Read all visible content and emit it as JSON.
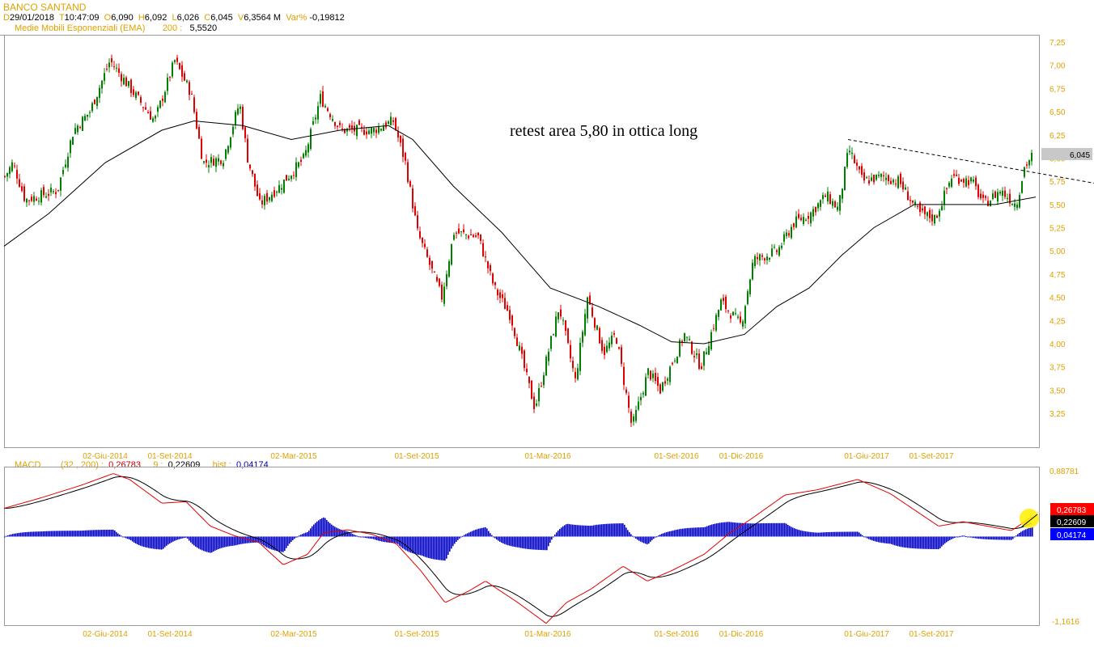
{
  "header": {
    "symbol": "BANCO SANTAND",
    "d_label": "D",
    "date": "29/01/2018",
    "t_label": "T",
    "time": "10:47:09",
    "o_label": "O",
    "open": "6,090",
    "h_label": "H",
    "high": "6,092",
    "l_label": "L",
    "low": "6,026",
    "c_label": "C",
    "close": "6,045",
    "v_label": "V",
    "volume": "6,3564 M",
    "var_label": "Var%",
    "var": "-0,19812",
    "ema_label": "Medie Mobili Esponenziali (EMA)",
    "ema_period": "200 :",
    "ema_value": "5,5520"
  },
  "macd_header": {
    "label": "MACD",
    "params": "(32 , 200) :",
    "macd_value": "0,26783",
    "signal_label": "9 :",
    "signal_value": "0,22609",
    "hist_label": "hist :",
    "hist_value": "0,04174"
  },
  "annotation": "retest area 5,80 in ottica long",
  "colors": {
    "up": "#008000",
    "down": "#e00000",
    "axis_text": "#e0a000",
    "macd": "#e00000",
    "signal": "#000000",
    "hist": "#0000cc",
    "highlight": "#ffee00"
  },
  "chart_data": [
    {
      "type": "candlestick",
      "title": "BANCO SANTAND",
      "ylim": [
        3.0,
        7.3
      ],
      "yticks": [
        "7,25",
        "7,00",
        "6,75",
        "6,50",
        "6,25",
        "6,00",
        "5,75",
        "5,50",
        "5,25",
        "5,00",
        "4,75",
        "4,50",
        "4,25",
        "4,00",
        "3,75",
        "3,50",
        "3,25"
      ],
      "xticks": [
        {
          "label": "02-Giu-2014",
          "t": 125
        },
        {
          "label": "01-Set-2014",
          "t": 205
        },
        {
          "label": "02-Mar-2015",
          "t": 358
        },
        {
          "label": "01-Set-2015",
          "t": 510
        },
        {
          "label": "01-Mar-2016",
          "t": 672
        },
        {
          "label": "01-Set-2016",
          "t": 831
        },
        {
          "label": "01-Dic-2016",
          "t": 911
        },
        {
          "label": "01-Giu-2017",
          "t": 1066
        },
        {
          "label": "01-Set-2017",
          "t": 1146
        }
      ],
      "xrange": [
        0,
        1280
      ],
      "close_path": [
        [
          0,
          5.8
        ],
        [
          10,
          5.95
        ],
        [
          25,
          5.55
        ],
        [
          65,
          5.65
        ],
        [
          85,
          6.3
        ],
        [
          105,
          6.5
        ],
        [
          130,
          7.05
        ],
        [
          155,
          6.75
        ],
        [
          185,
          6.4
        ],
        [
          210,
          7.05
        ],
        [
          230,
          6.7
        ],
        [
          245,
          5.95
        ],
        [
          270,
          6.0
        ],
        [
          290,
          6.6
        ],
        [
          300,
          6.0
        ],
        [
          315,
          5.5
        ],
        [
          340,
          5.7
        ],
        [
          370,
          6.0
        ],
        [
          390,
          6.65
        ],
        [
          415,
          6.3
        ],
        [
          455,
          6.3
        ],
        [
          480,
          6.4
        ],
        [
          495,
          5.95
        ],
        [
          510,
          5.2
        ],
        [
          540,
          4.5
        ],
        [
          555,
          5.2
        ],
        [
          585,
          5.15
        ],
        [
          605,
          4.6
        ],
        [
          625,
          4.3
        ],
        [
          655,
          3.3
        ],
        [
          685,
          4.4
        ],
        [
          705,
          3.6
        ],
        [
          720,
          4.5
        ],
        [
          740,
          3.9
        ],
        [
          755,
          4.1
        ],
        [
          775,
          3.1
        ],
        [
          795,
          3.7
        ],
        [
          810,
          3.5
        ],
        [
          840,
          4.1
        ],
        [
          860,
          3.75
        ],
        [
          885,
          4.45
        ],
        [
          910,
          4.2
        ],
        [
          925,
          4.9
        ],
        [
          955,
          5.0
        ],
        [
          975,
          5.3
        ],
        [
          995,
          5.4
        ],
        [
          1015,
          5.6
        ],
        [
          1030,
          5.45
        ],
        [
          1043,
          6.1
        ],
        [
          1060,
          5.75
        ],
        [
          1085,
          5.8
        ],
        [
          1105,
          5.75
        ],
        [
          1130,
          5.4
        ],
        [
          1150,
          5.35
        ],
        [
          1170,
          5.8
        ],
        [
          1195,
          5.75
        ],
        [
          1210,
          5.5
        ],
        [
          1230,
          5.65
        ],
        [
          1250,
          5.5
        ],
        [
          1260,
          5.9
        ],
        [
          1271,
          6.045
        ]
      ],
      "ema200": {
        "name": "EMA 200",
        "points": [
          [
            0,
            5.05
          ],
          [
            55,
            5.4
          ],
          [
            125,
            5.95
          ],
          [
            195,
            6.3
          ],
          [
            235,
            6.4
          ],
          [
            295,
            6.35
          ],
          [
            355,
            6.2
          ],
          [
            415,
            6.3
          ],
          [
            475,
            6.35
          ],
          [
            505,
            6.2
          ],
          [
            555,
            5.7
          ],
          [
            615,
            5.2
          ],
          [
            675,
            4.6
          ],
          [
            735,
            4.4
          ],
          [
            785,
            4.2
          ],
          [
            825,
            4.02
          ],
          [
            865,
            4.0
          ],
          [
            915,
            4.1
          ],
          [
            955,
            4.4
          ],
          [
            995,
            4.6
          ],
          [
            1035,
            4.95
          ],
          [
            1075,
            5.25
          ],
          [
            1125,
            5.5
          ],
          [
            1175,
            5.5
          ],
          [
            1225,
            5.5
          ],
          [
            1275,
            5.58
          ]
        ]
      },
      "trendline": {
        "from": [
          1043,
          6.2
        ],
        "to": [
          1352,
          5.73
        ],
        "style": "dashed"
      },
      "last_price_label": "6,045"
    },
    {
      "type": "line",
      "title": "MACD",
      "ylim": [
        -1.1616,
        0.88781
      ],
      "ytick_labels": [
        "0,88781",
        "-1,1616"
      ],
      "series": [
        {
          "name": "MACD (32,200)",
          "last": "0,26783",
          "points": [
            [
              0,
              0.38
            ],
            [
              45,
              0.52
            ],
            [
              95,
              0.69
            ],
            [
              135,
              0.85
            ],
            [
              155,
              0.77
            ],
            [
              195,
              0.45
            ],
            [
              225,
              0.47
            ],
            [
              255,
              0.14
            ],
            [
              285,
              0.01
            ],
            [
              315,
              -0.08
            ],
            [
              345,
              -0.38
            ],
            [
              375,
              -0.24
            ],
            [
              395,
              0.05
            ],
            [
              425,
              0.09
            ],
            [
              455,
              0.03
            ],
            [
              485,
              -0.1
            ],
            [
              515,
              -0.46
            ],
            [
              545,
              -0.89
            ],
            [
              575,
              -0.73
            ],
            [
              595,
              -0.6
            ],
            [
              635,
              -0.89
            ],
            [
              670,
              -1.17
            ],
            [
              695,
              -0.89
            ],
            [
              725,
              -0.71
            ],
            [
              765,
              -0.4
            ],
            [
              795,
              -0.6
            ],
            [
              825,
              -0.46
            ],
            [
              865,
              -0.24
            ],
            [
              895,
              0.03
            ],
            [
              925,
              0.25
            ],
            [
              965,
              0.56
            ],
            [
              1005,
              0.63
            ],
            [
              1055,
              0.77
            ],
            [
              1095,
              0.58
            ],
            [
              1125,
              0.36
            ],
            [
              1155,
              0.14
            ],
            [
              1185,
              0.2
            ],
            [
              1215,
              0.14
            ],
            [
              1245,
              0.08
            ],
            [
              1271,
              0.27
            ]
          ]
        },
        {
          "name": "Signal 9",
          "last": "0,22609"
        },
        {
          "name": "Histogram",
          "last": "0,04174"
        }
      ]
    }
  ]
}
